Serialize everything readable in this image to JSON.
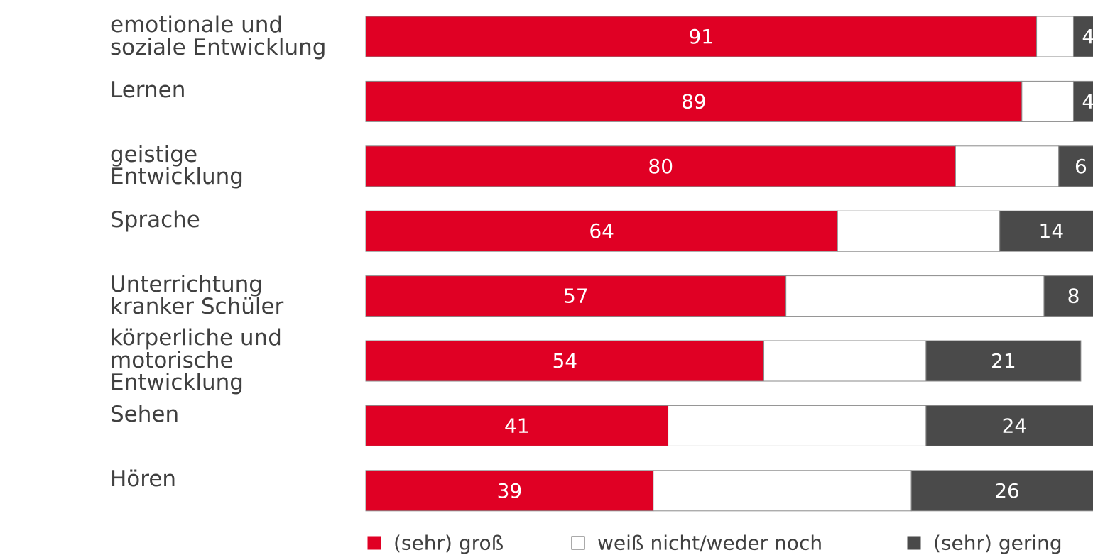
{
  "chart_data": {
    "type": "stacked_bar_horizontal",
    "categories": [
      "emotionale und soziale Entwicklung",
      "Lernen",
      "geistige Entwicklung",
      "Sprache",
      "Unterrichtung kranker Schüler",
      "körperliche und motorische Entwicklung",
      "Sehen",
      "Hören"
    ],
    "xlim": [
      0,
      100
    ],
    "series": [
      {
        "name": "(sehr) groß",
        "color": "#e00024",
        "values": [
          91,
          89,
          80,
          64,
          57,
          54,
          41,
          39
        ]
      },
      {
        "name": "weiß nicht/weder noch",
        "color": "#ffffff",
        "values": [
          5,
          7,
          14,
          22,
          35,
          22,
          35,
          35
        ]
      },
      {
        "name": "(sehr) gering",
        "color": "#4a4a4a",
        "values": [
          4,
          4,
          6,
          14,
          8,
          21,
          24,
          26
        ]
      }
    ],
    "label_series": [
      0,
      2
    ]
  }
}
